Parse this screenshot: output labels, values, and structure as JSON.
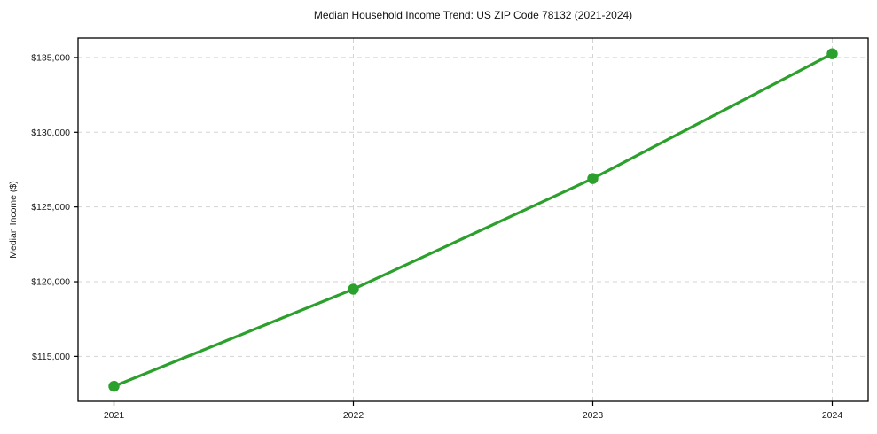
{
  "chart_data": {
    "type": "line",
    "title": "Median Household Income Trend: US ZIP Code 78132 (2021-2024)",
    "xlabel": "",
    "ylabel": "Median Income ($)",
    "x": [
      2021,
      2022,
      2023,
      2024
    ],
    "x_tick_labels": [
      "2021",
      "2022",
      "2023",
      "2024"
    ],
    "series": [
      {
        "name": "Median household income",
        "values": [
          113000,
          119500,
          126900,
          135250
        ]
      }
    ],
    "y_ticks": [
      115000,
      120000,
      125000,
      130000,
      135000
    ],
    "y_tick_labels": [
      "$115,000",
      "$120,000",
      "$125,000",
      "$130,000",
      "$135,000"
    ],
    "xlim": [
      2020.85,
      2024.15
    ],
    "ylim": [
      112000,
      136300
    ],
    "grid": true,
    "legend": "none",
    "colors": {
      "line": "#2ca02c",
      "marker": "#2ca02c",
      "grid": "#d3d3d3",
      "spine": "#000000",
      "text": "#1a1a1a",
      "background": "#ffffff"
    }
  }
}
